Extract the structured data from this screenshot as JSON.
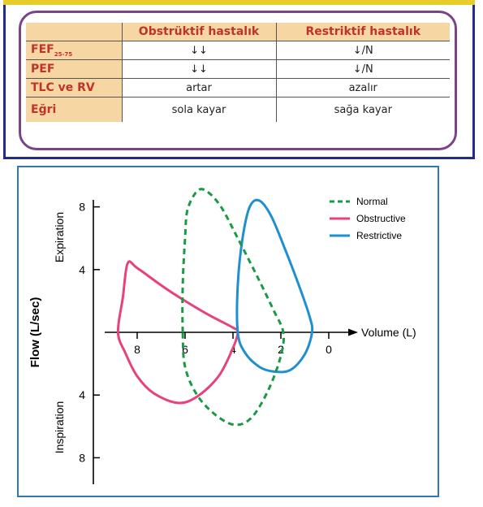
{
  "table": {
    "headers": [
      "",
      "Obstrüktif hastalık",
      "Restriktif hastalık"
    ],
    "rows": [
      {
        "label": "FEF",
        "label_sub": "25-75",
        "obstructive": "↓↓",
        "restrictive": "↓/N"
      },
      {
        "label": "PEF",
        "obstructive": "↓↓",
        "restrictive": "↓/N"
      },
      {
        "label": "TLC ve RV",
        "obstructive": "artar",
        "restrictive": "azalır"
      },
      {
        "label": "Eğri",
        "obstructive": "sola kayar",
        "restrictive": "sağa kayar"
      }
    ]
  },
  "chart_data": {
    "type": "line",
    "xlabel": "Volume (L)",
    "ylabel": "Flow (L/sec)",
    "ylabel_upper": "Expiration",
    "ylabel_lower": "Inspiration",
    "x_ticks": [
      8,
      6,
      4,
      2,
      0
    ],
    "y_ticks_upper": [
      8,
      4
    ],
    "y_ticks_lower": [
      4,
      8
    ],
    "xlim": [
      10,
      -1
    ],
    "ylim": [
      -9,
      9
    ],
    "legend_position": "top-right",
    "series": [
      {
        "name": "Normal",
        "color": "#1a9a44",
        "style": "dashed",
        "points": [
          [
            6.1,
            0
          ],
          [
            6.1,
            3
          ],
          [
            6.0,
            6
          ],
          [
            5.9,
            7.8
          ],
          [
            5.5,
            9.0
          ],
          [
            5.1,
            9.0
          ],
          [
            4.5,
            8.0
          ],
          [
            3.8,
            6.0
          ],
          [
            3.0,
            3.6
          ],
          [
            2.3,
            1.4
          ],
          [
            1.9,
            0
          ],
          [
            2.0,
            -1.5
          ],
          [
            2.5,
            -3.6
          ],
          [
            3.2,
            -5.4
          ],
          [
            3.9,
            -5.9
          ],
          [
            4.7,
            -5.3
          ],
          [
            5.5,
            -4.0
          ],
          [
            6.0,
            -2.2
          ],
          [
            6.1,
            0
          ]
        ]
      },
      {
        "name": "Obstructive",
        "color": "#e8417d",
        "style": "solid",
        "points": [
          [
            8.8,
            0
          ],
          [
            8.6,
            2.2
          ],
          [
            8.4,
            4.4
          ],
          [
            8.0,
            4.1
          ],
          [
            7.0,
            3.0
          ],
          [
            6.0,
            2.0
          ],
          [
            5.0,
            1.1
          ],
          [
            4.0,
            0.3
          ],
          [
            3.8,
            0
          ],
          [
            4.0,
            -1.0
          ],
          [
            4.6,
            -2.8
          ],
          [
            5.5,
            -4.1
          ],
          [
            6.3,
            -4.5
          ],
          [
            7.3,
            -3.9
          ],
          [
            8.0,
            -2.8
          ],
          [
            8.5,
            -1.3
          ],
          [
            8.8,
            0
          ]
        ]
      },
      {
        "name": "Restrictive",
        "color": "#1e90d0",
        "style": "solid",
        "points": [
          [
            3.8,
            0
          ],
          [
            3.8,
            3
          ],
          [
            3.6,
            6
          ],
          [
            3.3,
            8.0
          ],
          [
            2.9,
            8.4
          ],
          [
            2.4,
            7.4
          ],
          [
            1.8,
            5.2
          ],
          [
            1.2,
            2.8
          ],
          [
            0.8,
            1.0
          ],
          [
            0.7,
            0
          ],
          [
            1.0,
            -1.4
          ],
          [
            1.6,
            -2.4
          ],
          [
            2.3,
            -2.5
          ],
          [
            2.9,
            -2.2
          ],
          [
            3.5,
            -1.3
          ],
          [
            3.8,
            0
          ]
        ]
      }
    ]
  }
}
